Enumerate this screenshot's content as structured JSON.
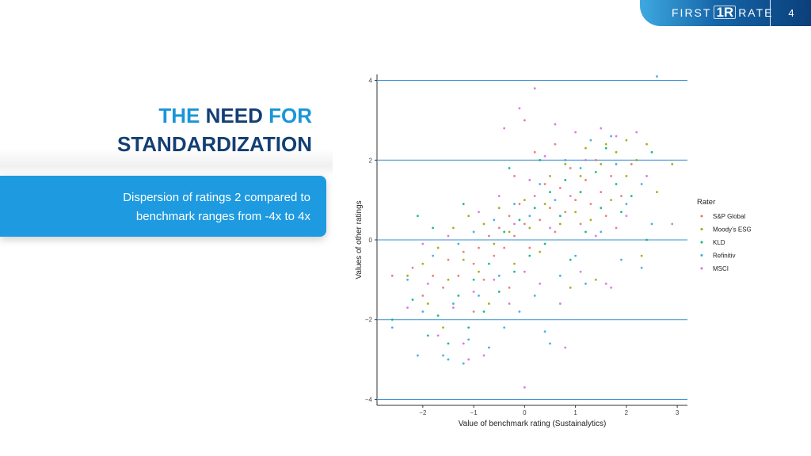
{
  "header": {
    "brand_left": "FIRST",
    "brand_mark": "1R",
    "brand_right": "RATE",
    "page_number": "4"
  },
  "slide": {
    "title_words": [
      "THE",
      "NEED",
      "FOR",
      "STANDARDIZATION"
    ],
    "subtitle_lines": [
      "Dispersion of ratings 2 compared to",
      "benchmark ranges from -4x to 4x"
    ]
  },
  "chart_data": {
    "type": "scatter",
    "xlabel": "Value of benchmark rating (Sustainalytics)",
    "ylabel": "Values of other ratings",
    "xlim": [
      -2.9,
      3.2
    ],
    "ylim": [
      -4.15,
      4.15
    ],
    "x_ticks": [
      -2,
      -1,
      0,
      1,
      2,
      3
    ],
    "x_tick_labels": [
      "−2",
      "−1",
      "0",
      "1",
      "2",
      "3"
    ],
    "y_ticks": [
      -4,
      -2,
      0,
      2,
      4
    ],
    "y_tick_labels": [
      "−4",
      "−2",
      "0",
      "2",
      "4"
    ],
    "reference_lines_y": [
      -4,
      -2,
      0,
      2,
      4
    ],
    "reference_line_color": "#3a8fd0",
    "legend": {
      "title": "Rater",
      "position": "right",
      "items": [
        {
          "name": "S&P Global",
          "color": "#e8736c"
        },
        {
          "name": "Moody’s ESG",
          "color": "#a3a500"
        },
        {
          "name": "KLD",
          "color": "#00b67c"
        },
        {
          "name": "Refinitiv",
          "color": "#33a9e6"
        },
        {
          "name": "MSCI",
          "color": "#d86be0"
        }
      ]
    },
    "series": [
      {
        "name": "S&P Global",
        "points": [
          [
            -2.6,
            -0.9
          ],
          [
            -2.2,
            -0.7
          ],
          [
            -2.0,
            -1.4
          ],
          [
            -1.8,
            -0.9
          ],
          [
            -1.6,
            -1.2
          ],
          [
            -1.5,
            -0.5
          ],
          [
            -1.3,
            -0.9
          ],
          [
            -1.2,
            -0.3
          ],
          [
            -1.0,
            -0.6
          ],
          [
            -0.9,
            -0.2
          ],
          [
            -0.8,
            -1.0
          ],
          [
            -0.7,
            0.1
          ],
          [
            -0.6,
            -0.4
          ],
          [
            -0.5,
            0.3
          ],
          [
            -0.4,
            -0.2
          ],
          [
            -0.3,
            0.6
          ],
          [
            -0.2,
            0.1
          ],
          [
            -0.1,
            0.9
          ],
          [
            0.0,
            0.4
          ],
          [
            0.1,
            -0.2
          ],
          [
            0.2,
            1.1
          ],
          [
            0.3,
            0.5
          ],
          [
            0.4,
            1.4
          ],
          [
            0.5,
            0.8
          ],
          [
            0.6,
            0.2
          ],
          [
            0.7,
            1.3
          ],
          [
            0.8,
            0.7
          ],
          [
            0.9,
            1.8
          ],
          [
            1.0,
            1.0
          ],
          [
            1.1,
            0.4
          ],
          [
            1.2,
            1.5
          ],
          [
            1.3,
            0.9
          ],
          [
            1.4,
            2.0
          ],
          [
            1.5,
            1.2
          ],
          [
            1.6,
            0.6
          ],
          [
            1.7,
            1.6
          ],
          [
            1.9,
            1.1
          ],
          [
            2.1,
            1.9
          ],
          [
            -1.0,
            -1.8
          ],
          [
            -0.3,
            -1.2
          ],
          [
            0.2,
            2.2
          ],
          [
            0.6,
            2.4
          ],
          [
            0.0,
            3.0
          ],
          [
            -0.2,
            1.6
          ],
          [
            1.8,
            0.3
          ]
        ]
      },
      {
        "name": "Moody’s ESG",
        "points": [
          [
            -2.3,
            -0.9
          ],
          [
            -2.0,
            -0.6
          ],
          [
            -1.9,
            -1.6
          ],
          [
            -1.7,
            -0.2
          ],
          [
            -1.5,
            -1.0
          ],
          [
            -1.4,
            0.3
          ],
          [
            -1.2,
            -0.5
          ],
          [
            -1.1,
            0.6
          ],
          [
            -0.9,
            -0.8
          ],
          [
            -0.8,
            0.4
          ],
          [
            -0.6,
            -0.1
          ],
          [
            -0.5,
            0.8
          ],
          [
            -0.3,
            0.2
          ],
          [
            -0.2,
            -0.6
          ],
          [
            0.0,
            1.0
          ],
          [
            0.1,
            0.3
          ],
          [
            0.3,
            -0.3
          ],
          [
            0.4,
            0.9
          ],
          [
            0.5,
            1.6
          ],
          [
            0.7,
            0.4
          ],
          [
            0.8,
            1.9
          ],
          [
            1.0,
            0.7
          ],
          [
            1.1,
            1.6
          ],
          [
            1.2,
            2.3
          ],
          [
            1.3,
            0.5
          ],
          [
            1.5,
            1.9
          ],
          [
            1.6,
            2.4
          ],
          [
            1.7,
            1.0
          ],
          [
            1.8,
            2.2
          ],
          [
            2.0,
            1.6
          ],
          [
            2.0,
            2.5
          ],
          [
            2.2,
            2.0
          ],
          [
            2.4,
            2.4
          ],
          [
            2.6,
            1.2
          ],
          [
            2.9,
            1.9
          ],
          [
            -1.6,
            -2.2
          ],
          [
            -0.7,
            -1.6
          ],
          [
            0.9,
            -1.2
          ],
          [
            2.3,
            -0.4
          ],
          [
            1.4,
            -1.0
          ]
        ]
      },
      {
        "name": "KLD",
        "points": [
          [
            -2.6,
            -2.0
          ],
          [
            -2.2,
            -1.5
          ],
          [
            -1.9,
            -2.4
          ],
          [
            -1.7,
            -1.9
          ],
          [
            -1.5,
            -2.6
          ],
          [
            -1.3,
            -1.4
          ],
          [
            -1.1,
            -2.2
          ],
          [
            -1.0,
            -1.0
          ],
          [
            -0.8,
            -1.8
          ],
          [
            -0.7,
            -0.6
          ],
          [
            -0.5,
            -1.3
          ],
          [
            -0.4,
            0.2
          ],
          [
            -0.2,
            -0.8
          ],
          [
            -0.1,
            0.5
          ],
          [
            0.1,
            -0.4
          ],
          [
            0.2,
            0.8
          ],
          [
            0.4,
            -0.1
          ],
          [
            0.5,
            1.2
          ],
          [
            0.7,
            0.6
          ],
          [
            0.8,
            1.5
          ],
          [
            0.9,
            -0.5
          ],
          [
            1.1,
            1.2
          ],
          [
            1.2,
            0.2
          ],
          [
            1.4,
            1.7
          ],
          [
            1.5,
            0.8
          ],
          [
            1.6,
            2.3
          ],
          [
            1.8,
            1.4
          ],
          [
            1.9,
            0.7
          ],
          [
            2.1,
            1.1
          ],
          [
            2.5,
            2.2
          ],
          [
            -2.1,
            0.6
          ],
          [
            -1.8,
            0.3
          ],
          [
            -1.2,
            0.9
          ],
          [
            0.3,
            2.0
          ],
          [
            -0.3,
            1.8
          ],
          [
            2.4,
            0.0
          ]
        ]
      },
      {
        "name": "Refinitiv",
        "points": [
          [
            -2.6,
            -2.2
          ],
          [
            -2.3,
            -1.0
          ],
          [
            -2.1,
            -2.9
          ],
          [
            -2.0,
            -1.8
          ],
          [
            -1.8,
            -0.4
          ],
          [
            -1.6,
            -2.9
          ],
          [
            -1.4,
            -1.6
          ],
          [
            -1.3,
            -0.1
          ],
          [
            -1.1,
            -2.5
          ],
          [
            -1.0,
            0.2
          ],
          [
            -0.9,
            -1.4
          ],
          [
            -0.7,
            -2.7
          ],
          [
            -0.6,
            0.5
          ],
          [
            -0.5,
            -0.9
          ],
          [
            -0.4,
            -2.2
          ],
          [
            -0.2,
            0.9
          ],
          [
            -0.1,
            -1.8
          ],
          [
            0.1,
            0.6
          ],
          [
            0.2,
            -1.4
          ],
          [
            0.3,
            1.4
          ],
          [
            0.4,
            -2.3
          ],
          [
            0.6,
            1.0
          ],
          [
            0.7,
            -0.9
          ],
          [
            0.8,
            2.0
          ],
          [
            1.0,
            -0.4
          ],
          [
            1.1,
            1.8
          ],
          [
            1.2,
            -1.1
          ],
          [
            1.3,
            2.5
          ],
          [
            1.5,
            0.2
          ],
          [
            1.7,
            2.6
          ],
          [
            1.8,
            1.9
          ],
          [
            2.0,
            0.9
          ],
          [
            2.3,
            1.4
          ],
          [
            2.5,
            0.4
          ],
          [
            2.6,
            4.1
          ],
          [
            2.3,
            -0.7
          ],
          [
            -1.5,
            -3.0
          ],
          [
            -1.2,
            -3.1
          ],
          [
            0.5,
            -2.6
          ],
          [
            1.9,
            -0.5
          ]
        ]
      },
      {
        "name": "MSCI",
        "points": [
          [
            -2.3,
            -1.7
          ],
          [
            -2.0,
            -0.1
          ],
          [
            -1.9,
            -1.1
          ],
          [
            -1.7,
            -2.4
          ],
          [
            -1.5,
            0.1
          ],
          [
            -1.4,
            -1.7
          ],
          [
            -1.2,
            -2.6
          ],
          [
            -1.0,
            -1.3
          ],
          [
            -0.9,
            0.7
          ],
          [
            -0.8,
            -2.9
          ],
          [
            -0.6,
            -1.0
          ],
          [
            -0.5,
            1.1
          ],
          [
            -0.3,
            -1.6
          ],
          [
            -0.2,
            0.4
          ],
          [
            0.0,
            -0.8
          ],
          [
            0.1,
            1.5
          ],
          [
            0.2,
            3.8
          ],
          [
            0.3,
            -1.1
          ],
          [
            0.4,
            2.1
          ],
          [
            0.5,
            0.3
          ],
          [
            0.6,
            2.9
          ],
          [
            0.7,
            -1.6
          ],
          [
            0.9,
            1.1
          ],
          [
            1.0,
            2.7
          ],
          [
            1.1,
            -0.8
          ],
          [
            1.2,
            2.0
          ],
          [
            1.4,
            0.1
          ],
          [
            1.5,
            2.8
          ],
          [
            1.6,
            -1.1
          ],
          [
            1.8,
            2.6
          ],
          [
            2.0,
            0.6
          ],
          [
            2.2,
            2.7
          ],
          [
            2.4,
            1.6
          ],
          [
            2.9,
            0.4
          ],
          [
            0.0,
            -3.7
          ],
          [
            -0.1,
            3.3
          ],
          [
            -0.4,
            2.8
          ],
          [
            0.8,
            -2.7
          ],
          [
            1.7,
            -1.2
          ],
          [
            -1.1,
            -3.0
          ]
        ]
      }
    ]
  }
}
